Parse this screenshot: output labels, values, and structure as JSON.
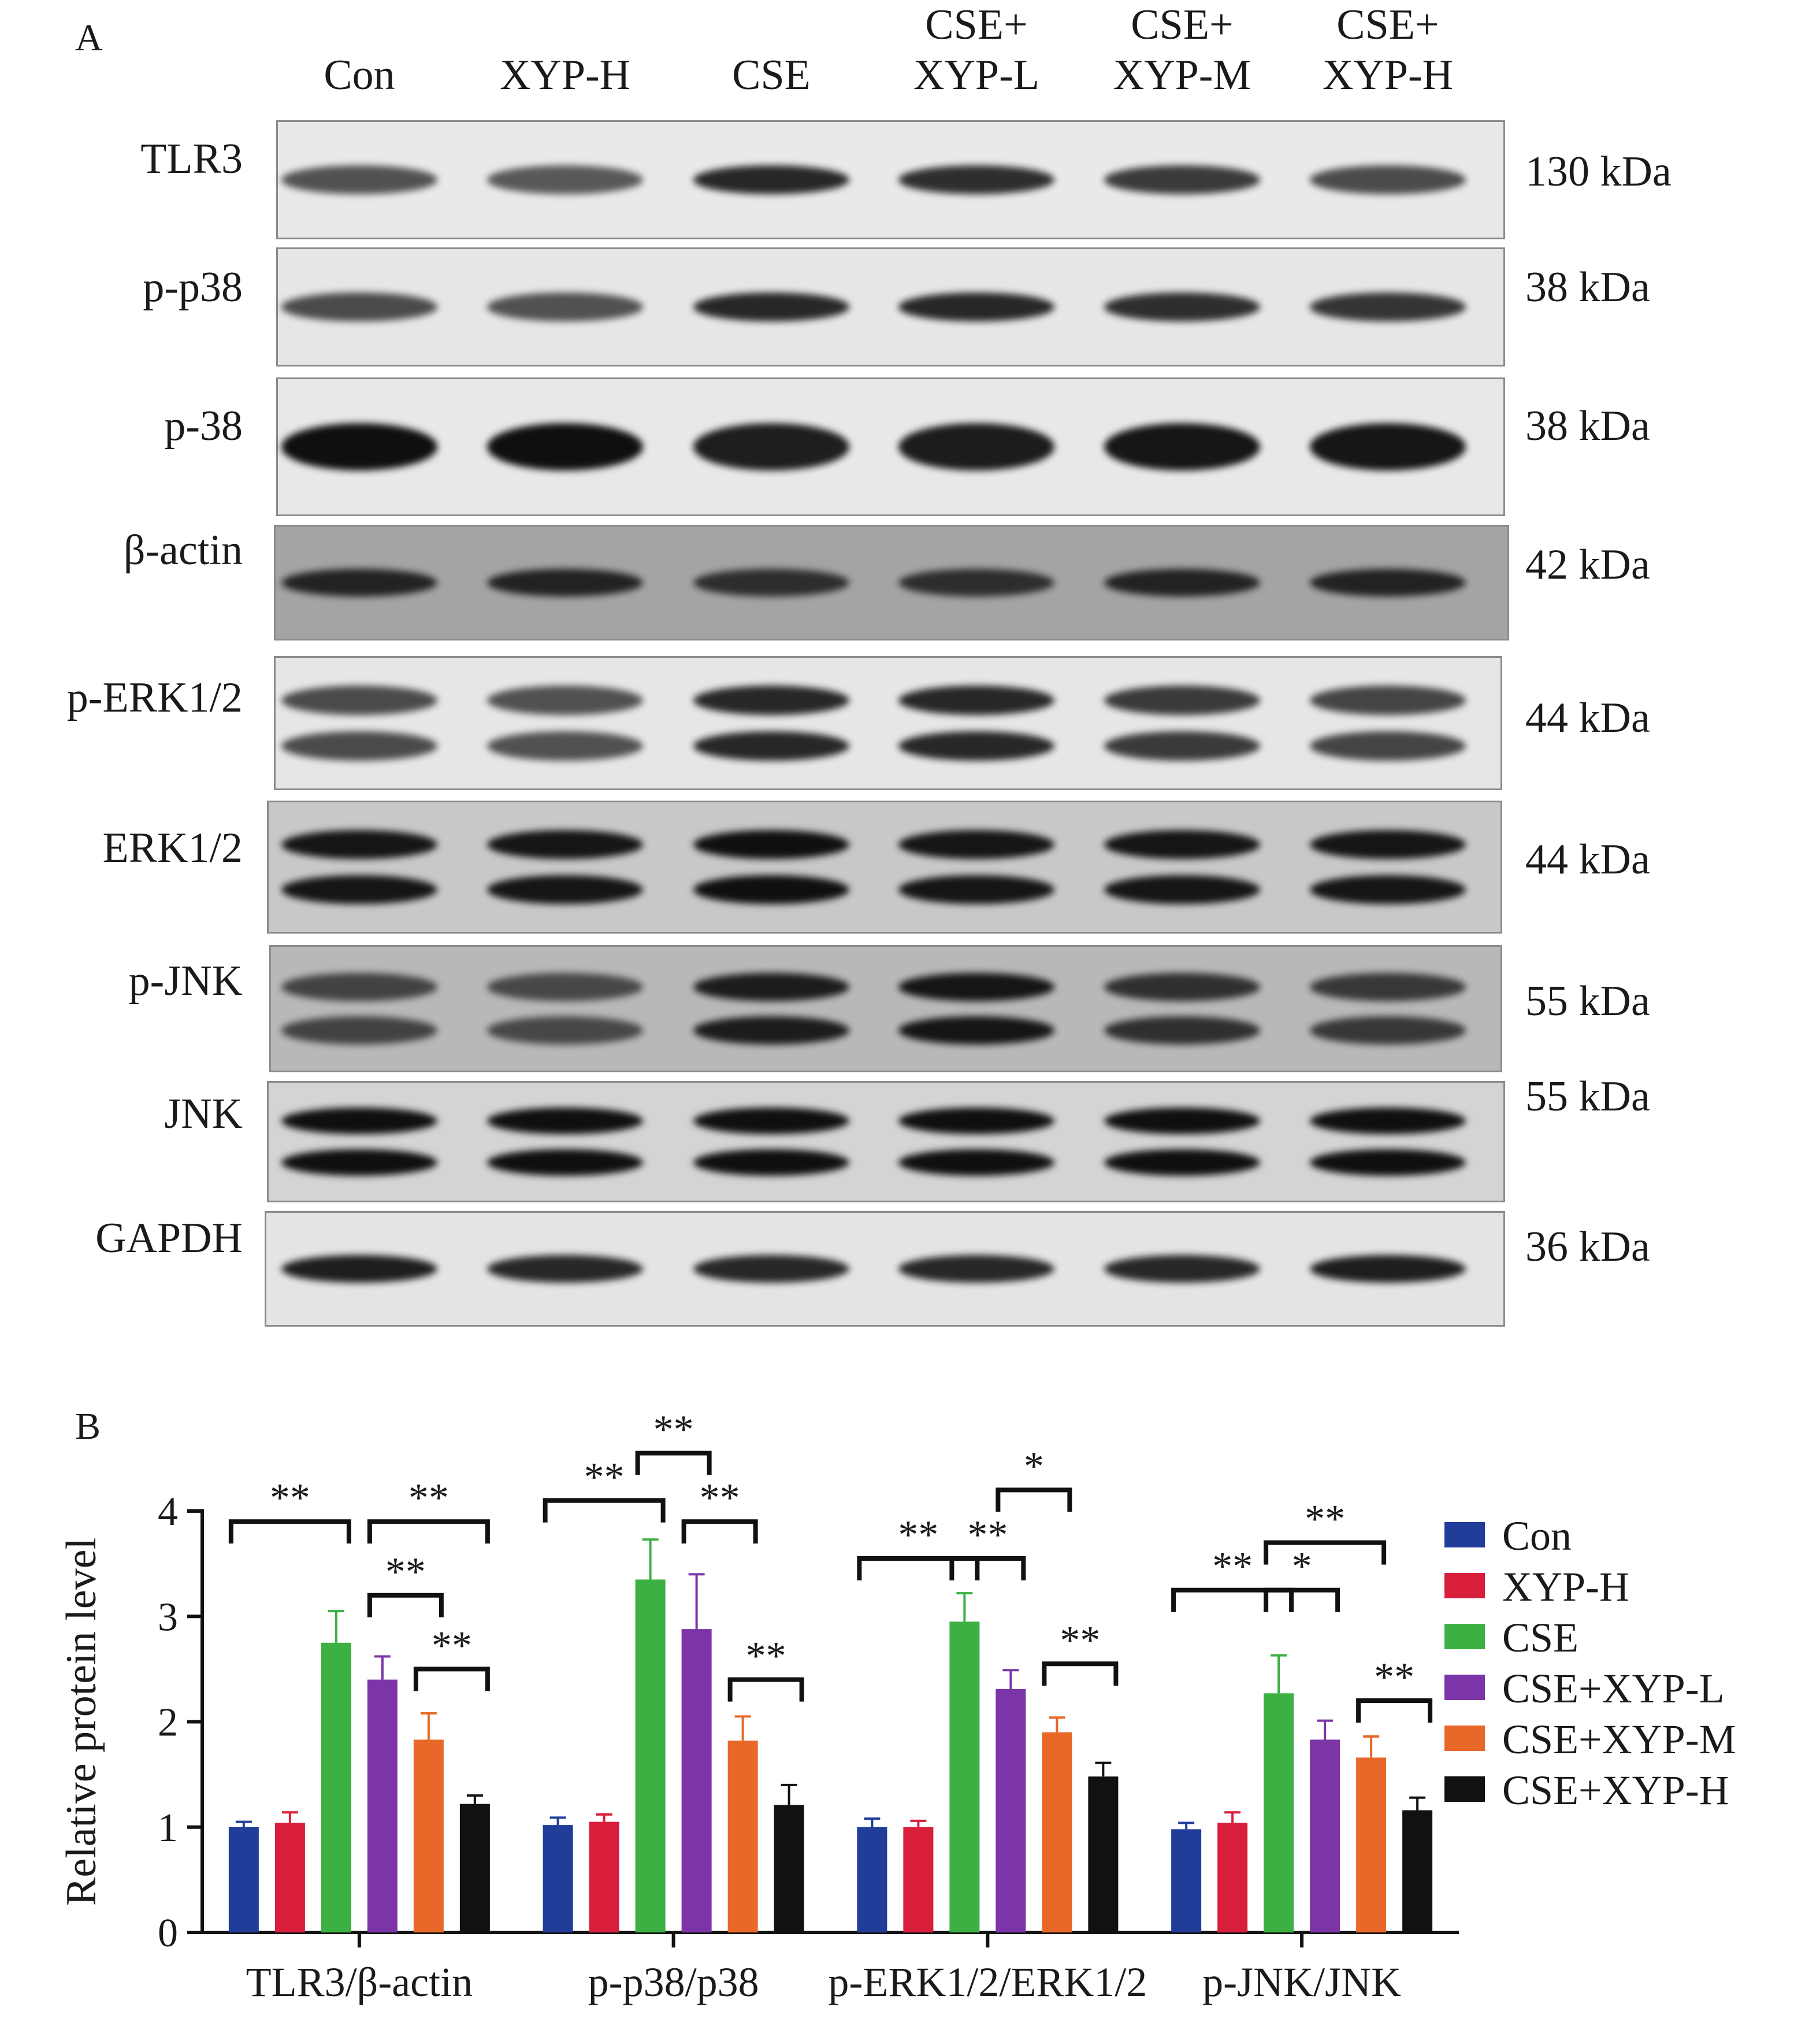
{
  "panels": {
    "a": "A",
    "b": "B"
  },
  "lanes": [
    {
      "line1": "",
      "line2": "Con"
    },
    {
      "line1": "",
      "line2": "XYP-H"
    },
    {
      "line1": "",
      "line2": "CSE"
    },
    {
      "line1": "CSE+",
      "line2": "XYP-L"
    },
    {
      "line1": "CSE+",
      "line2": "XYP-M"
    },
    {
      "line1": "CSE+",
      "line2": "XYP-H"
    }
  ],
  "blots": [
    {
      "label": "TLR3",
      "kda": "130 kDa",
      "bg": "#e9e9e9",
      "intensity": [
        0.55,
        0.5,
        0.85,
        0.8,
        0.72,
        0.6
      ],
      "double": false
    },
    {
      "label": "p-p38",
      "kda": "38 kDa",
      "bg": "#e6e6e6",
      "intensity": [
        0.6,
        0.55,
        0.85,
        0.85,
        0.8,
        0.75
      ],
      "double": false
    },
    {
      "label": "p-38",
      "kda": "38 kDa",
      "bg": "#e8e8e8",
      "intensity": [
        1.0,
        1.0,
        0.9,
        0.92,
        0.95,
        0.95
      ],
      "double": false
    },
    {
      "label": "β-actin",
      "kda": "42 kDa",
      "bg": "#a4a4a4",
      "intensity": [
        0.85,
        0.85,
        0.75,
        0.75,
        0.85,
        0.85
      ],
      "double": false
    },
    {
      "label": "p-ERK1/2",
      "kda": "44 kDa",
      "bg": "#e6e6e6",
      "intensity": [
        0.6,
        0.55,
        0.85,
        0.85,
        0.72,
        0.65
      ],
      "double": true
    },
    {
      "label": "ERK1/2",
      "kda": "44 kDa",
      "bg": "#c8c8c8",
      "intensity": [
        0.95,
        0.95,
        1.0,
        0.95,
        0.95,
        0.95
      ],
      "double": true
    },
    {
      "label": "p-JNK",
      "kda": "55 kDa",
      "bg": "#b8b8b8",
      "intensity": [
        0.6,
        0.55,
        0.9,
        0.95,
        0.75,
        0.7
      ],
      "double": true
    },
    {
      "label": "JNK",
      "kda": "55 kDa",
      "bg": "#d4d4d4",
      "intensity": [
        1.0,
        1.0,
        1.0,
        1.0,
        1.0,
        1.0
      ],
      "double": true
    },
    {
      "label": "GAPDH",
      "kda": "36 kDa",
      "bg": "#e4e4e4",
      "intensity": [
        0.9,
        0.85,
        0.85,
        0.85,
        0.85,
        0.9
      ],
      "double": false
    }
  ],
  "chart_data": {
    "type": "bar",
    "ylabel": "Relative protein level",
    "ylim": [
      0,
      4
    ],
    "yticks": [
      "0",
      "1",
      "2",
      "3",
      "4"
    ],
    "categories": [
      "TLR3/β-actin",
      "p-p38/p38",
      "p-ERK1/2/ERK1/2",
      "p-JNK/JNK"
    ],
    "series": [
      {
        "name": "Con",
        "color": "#1f3d99",
        "values": [
          1.0,
          1.02,
          1.0,
          0.98
        ],
        "errors": [
          0.05,
          0.07,
          0.08,
          0.06
        ]
      },
      {
        "name": "XYP-H",
        "color": "#d81e3a",
        "values": [
          1.04,
          1.05,
          1.0,
          1.04
        ],
        "errors": [
          0.1,
          0.07,
          0.06,
          0.1
        ]
      },
      {
        "name": "CSE",
        "color": "#3cb043",
        "values": [
          2.75,
          3.35,
          2.95,
          2.27
        ],
        "errors": [
          0.3,
          0.38,
          0.27,
          0.36
        ]
      },
      {
        "name": "CSE+XYP-L",
        "color": "#7b35a8",
        "values": [
          2.4,
          2.88,
          2.31,
          1.83
        ],
        "errors": [
          0.22,
          0.52,
          0.18,
          0.18
        ]
      },
      {
        "name": "CSE+XYP-M",
        "color": "#e8682a",
        "values": [
          1.83,
          1.82,
          1.9,
          1.66
        ],
        "errors": [
          0.25,
          0.23,
          0.14,
          0.2
        ]
      },
      {
        "name": "CSE+XYP-H",
        "color": "#111111",
        "values": [
          1.22,
          1.21,
          1.48,
          1.16
        ],
        "errors": [
          0.08,
          0.19,
          0.13,
          0.12
        ]
      }
    ],
    "significance": [
      {
        "group": 0,
        "from": 0,
        "to": 2,
        "level": 3.9,
        "label": "**"
      },
      {
        "group": 0,
        "from": 3,
        "to": 5,
        "level": 3.9,
        "label": "**"
      },
      {
        "group": 0,
        "from": 3,
        "to": 4,
        "level": 3.2,
        "label": "**"
      },
      {
        "group": 0,
        "from": 4,
        "to": 5,
        "level": 2.5,
        "label": "**"
      },
      {
        "group": 1,
        "from": 0,
        "to": 2,
        "level": 4.1,
        "label": "**"
      },
      {
        "group": 1,
        "from": 2,
        "to": 3,
        "level": 4.55,
        "label": "**"
      },
      {
        "group": 1,
        "from": 3,
        "to": 4,
        "level": 3.9,
        "label": "**"
      },
      {
        "group": 1,
        "from": 4,
        "to": 5,
        "level": 2.4,
        "label": "**"
      },
      {
        "group": 2,
        "from": 0,
        "to": 2,
        "level": 3.55,
        "label": "**"
      },
      {
        "group": 2,
        "from": 2,
        "to": 3,
        "level": 3.55,
        "label": "**"
      },
      {
        "group": 2,
        "from": 3,
        "to": 4,
        "level": 4.2,
        "label": "*"
      },
      {
        "group": 2,
        "from": 4,
        "to": 5,
        "level": 2.55,
        "label": "**"
      },
      {
        "group": 3,
        "from": 0,
        "to": 2,
        "level": 3.25,
        "label": "**"
      },
      {
        "group": 3,
        "from": 2,
        "to": 4,
        "level": 3.7,
        "label": "**"
      },
      {
        "group": 3,
        "from": 2,
        "to": 3,
        "level": 3.25,
        "label": "*"
      },
      {
        "group": 3,
        "from": 4,
        "to": 5,
        "level": 2.2,
        "label": "**"
      }
    ]
  }
}
